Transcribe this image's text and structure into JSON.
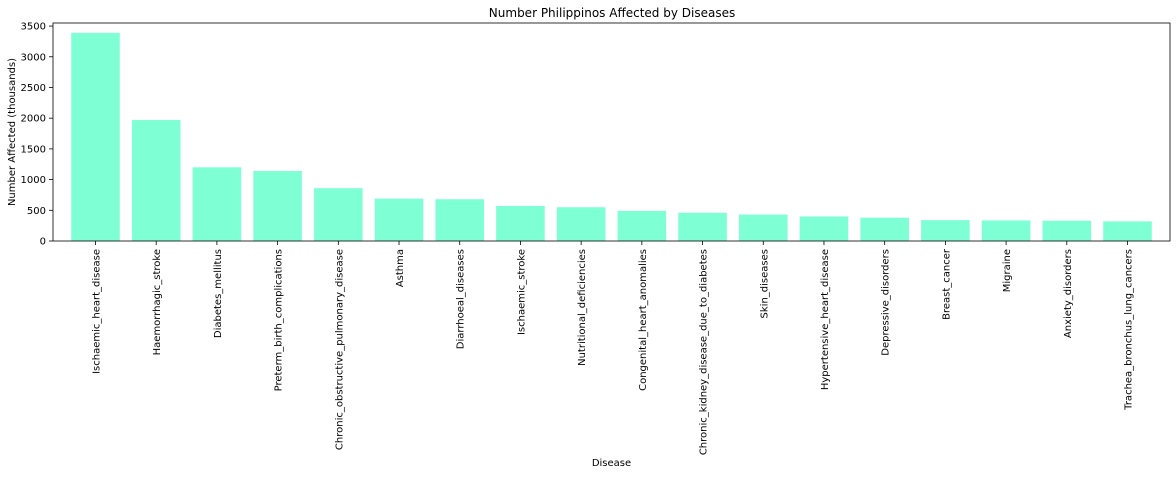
{
  "chart_data": {
    "type": "bar",
    "title": "Number Philippinos Affected by Diseases",
    "xlabel": "Disease",
    "ylabel": "Number Affected (thousands)",
    "ylim": [
      0,
      3550
    ],
    "yticks": [
      0,
      500,
      1000,
      1500,
      2000,
      2500,
      3000,
      3500
    ],
    "grid": false,
    "bar_color": "#7fffd4",
    "categories": [
      "Ischaemic_heart_disease",
      "Haemorrhagic_stroke",
      "Diabetes_mellitus",
      "Preterm_birth_complications",
      "Chronic_obstructive_pulmonary_disease",
      "Asthma",
      "Diarrhoeal_diseases",
      "Ischaemic_stroke",
      "Nutritional_deficiencies",
      "Congenital_heart_anomalies",
      "Chronic_kidney_disease_due_to_diabetes",
      "Skin_diseases",
      "Hypertensive_heart_disease",
      "Depressive_disorders",
      "Breast_cancer",
      "Migraine",
      "Anxiety_disorders",
      "Trachea_bronchus_lung_cancers"
    ],
    "values": [
      3390,
      1970,
      1200,
      1140,
      860,
      690,
      680,
      570,
      550,
      490,
      460,
      430,
      400,
      380,
      340,
      335,
      330,
      320
    ]
  }
}
